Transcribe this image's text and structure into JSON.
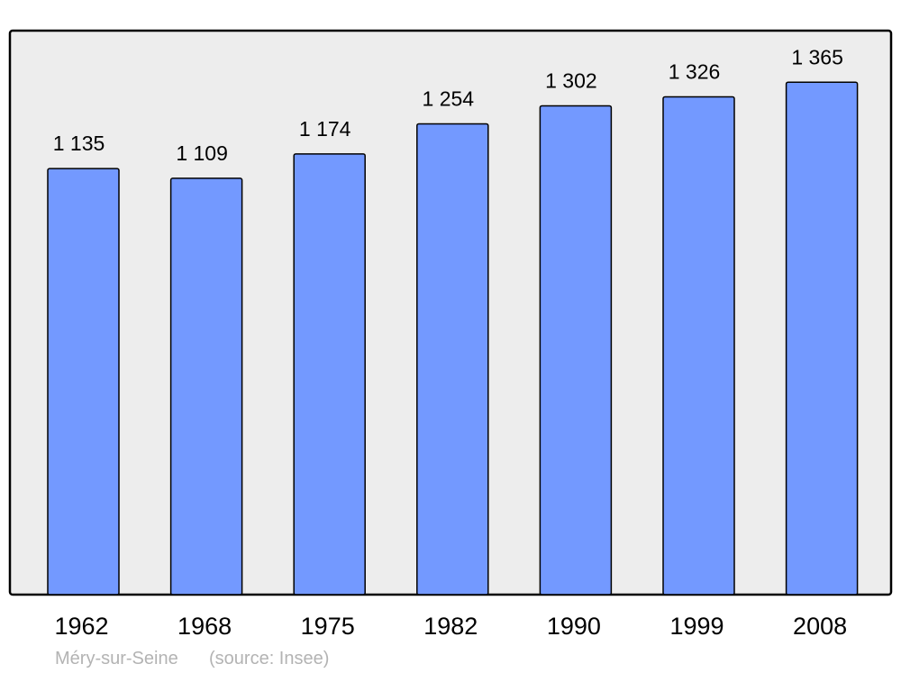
{
  "chart_data": {
    "type": "bar",
    "title": "",
    "xlabel": "",
    "ylabel": "",
    "categories": [
      "1962",
      "1968",
      "1975",
      "1982",
      "1990",
      "1999",
      "2008"
    ],
    "values": [
      1135,
      1109,
      1174,
      1254,
      1302,
      1326,
      1365
    ],
    "data_labels": [
      "1 135",
      "1 109",
      "1 174",
      "1 254",
      "1 302",
      "1 326",
      "1 365"
    ],
    "ylim": [
      0,
      1500
    ],
    "grid": false,
    "bar_color": "#7399ff",
    "background_color": "#ededed"
  },
  "footer": {
    "place": "Méry-sur-Seine",
    "source": "(source: Insee)"
  }
}
